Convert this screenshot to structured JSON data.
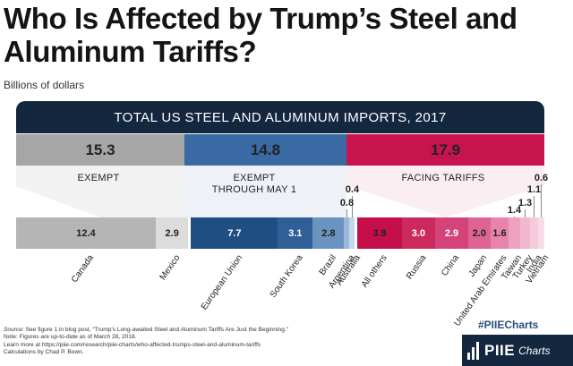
{
  "header": {
    "title": "Who Is Affected by Trump’s Steel and Aluminum Tariffs?",
    "subtitle": "Billions of dollars"
  },
  "chart_data": {
    "type": "bar",
    "title": "TOTAL US STEEL AND ALUMINUM IMPORTS, 2017",
    "unit": "Billions of dollars",
    "groups": [
      {
        "name": "EXEMPT",
        "total": "15.3",
        "color": "#a6a6a6"
      },
      {
        "name": "EXEMPT THROUGH MAY 1",
        "total": "14.8",
        "color": "#3a6aa3"
      },
      {
        "name": "FACING TARIFFS",
        "total": "17.9",
        "color": "#c8144e"
      }
    ],
    "categories": [
      "Canada",
      "Mexico",
      "European Union",
      "South Korea",
      "Brazil",
      "Argentina",
      "Australia",
      "All others",
      "Russia",
      "China",
      "Japan",
      "United Arab Emirates",
      "Taiwan",
      "Turkey",
      "India",
      "Vietnam"
    ],
    "values": [
      12.4,
      2.9,
      7.7,
      3.1,
      2.8,
      0.8,
      0.4,
      3.9,
      3.0,
      2.9,
      2.0,
      1.6,
      1.4,
      1.3,
      1.1,
      0.6
    ],
    "value_labels": [
      "12.4",
      "2.9",
      "7.7",
      "3.1",
      "2.8",
      "0.8",
      "0.4",
      "3.9",
      "3.0",
      "2.9",
      "2.0",
      "1.6",
      "1.4",
      "1.3",
      "1.1",
      "0.6"
    ],
    "segment_group": [
      0,
      0,
      1,
      1,
      1,
      1,
      1,
      2,
      2,
      2,
      2,
      2,
      2,
      2,
      2,
      2
    ],
    "segment_colors": [
      "#b5b5b5",
      "#dcdcdc",
      "#1f4e82",
      "#2f5f96",
      "#6b93c0",
      "#9bb8d8",
      "#c4d6ea",
      "#c40f4b",
      "#cc2a5d",
      "#d4447a",
      "#dd6493",
      "#e684ab",
      "#eda2c0",
      "#f1b8cf",
      "#f5cbdc",
      "#f8dbe6"
    ]
  },
  "footer": {
    "source_label": "Source:",
    "source_text": "See figure 1 in blog post, “Trump’s Long-awaited Steel and Aluminum Tariffs Are Just the Beginning.”",
    "note": "Note: Figures are up-to-date as of March 28, 2018.",
    "more": "Learn more at https://piie.com/research/piie-charts/who-affected-trumps-steel-and-aluminum-tariffs",
    "calc": "Calculations by Chad P. Bown."
  },
  "branding": {
    "hashtag": "#PIIECharts",
    "logo_name": "PIIE",
    "logo_sub": "Charts"
  }
}
